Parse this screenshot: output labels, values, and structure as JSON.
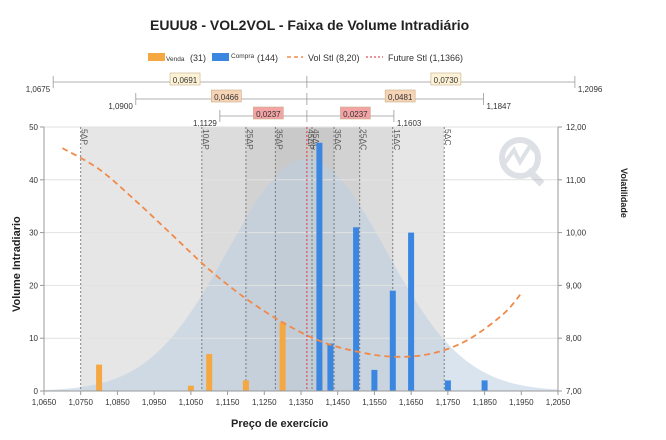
{
  "chart_data": {
    "type": "bar",
    "title": "EUUU8 - VOL2VOL - Faixa de Volume Intradiário",
    "xlabel": "Preço de exercício",
    "ylabel": "Volume Intradiario",
    "y2label": "Volatilidade",
    "xlim": [
      1.065,
      1.205
    ],
    "ylim": [
      0,
      50
    ],
    "y2lim": [
      7.0,
      12.0
    ],
    "x_ticks": [
      "1,0650",
      "1,0750",
      "1,0850",
      "1,0950",
      "1,1050",
      "1,1150",
      "1,1250",
      "1,1350",
      "1,1450",
      "1,1550",
      "1,1650",
      "1,1750",
      "1,1850",
      "1,1950",
      "1,2050"
    ],
    "y_ticks": [
      "0",
      "10",
      "20",
      "30",
      "40",
      "50"
    ],
    "y2_ticks": [
      "7,00",
      "8,00",
      "9,00",
      "10,00",
      "11,00",
      "12,00"
    ],
    "legend": {
      "venda": {
        "label": "Venda",
        "count": "(31)",
        "color": "#f5a742"
      },
      "compra": {
        "label": "Compra",
        "count": "(144)",
        "color": "#3b86e0"
      },
      "vol_stl": {
        "label": "Vol Stl (8,20)",
        "color": "#f08a4b"
      },
      "future_stl": {
        "label": "Future Stl (1,1366)",
        "color": "#e0505a"
      }
    },
    "series": [
      {
        "name": "Venda",
        "color": "#f5a742",
        "points": [
          [
            1.08,
            5
          ],
          [
            1.105,
            1
          ],
          [
            1.11,
            7
          ],
          [
            1.12,
            2
          ],
          [
            1.13,
            13
          ],
          [
            1.14,
            3
          ]
        ]
      },
      {
        "name": "Compra",
        "color": "#3b86e0",
        "points": [
          [
            1.14,
            47
          ],
          [
            1.143,
            9
          ],
          [
            1.15,
            31
          ],
          [
            1.155,
            4
          ],
          [
            1.16,
            19
          ],
          [
            1.165,
            30
          ],
          [
            1.175,
            2
          ],
          [
            1.185,
            2
          ]
        ]
      }
    ],
    "vol_curve": [
      [
        1.07,
        11.6
      ],
      [
        1.08,
        11.2
      ],
      [
        1.09,
        10.6
      ],
      [
        1.1,
        9.95
      ],
      [
        1.11,
        9.3
      ],
      [
        1.12,
        8.75
      ],
      [
        1.13,
        8.3
      ],
      [
        1.14,
        7.95
      ],
      [
        1.15,
        7.75
      ],
      [
        1.16,
        7.65
      ],
      [
        1.17,
        7.7
      ],
      [
        1.18,
        7.95
      ],
      [
        1.19,
        8.45
      ],
      [
        1.195,
        8.85
      ]
    ],
    "future_stl_x": 1.1366,
    "bell": {
      "mean": 1.1366,
      "sd": 0.0215,
      "peak": 44
    },
    "delta_lines": [
      {
        "label": "5ΔP",
        "x": 1.075
      },
      {
        "label": "10ΔP",
        "x": 1.108
      },
      {
        "label": "25ΔP",
        "x": 1.12
      },
      {
        "label": "35ΔP",
        "x": 1.128
      },
      {
        "label": "45ΔP",
        "x": 1.1366
      },
      {
        "label": "45ΔC",
        "x": 1.138
      },
      {
        "label": "35ΔC",
        "x": 1.144
      },
      {
        "label": "25ΔC",
        "x": 1.151
      },
      {
        "label": "15ΔC",
        "x": 1.16
      },
      {
        "label": "5ΔC",
        "x": 1.174
      }
    ],
    "ranges": [
      {
        "left_label": "1,0675",
        "right_label": "1,2096",
        "width_label": "0,0691",
        "width_label_right": "0,0730",
        "color": "#fdf2d6",
        "left": 1.0675,
        "right": 1.2096,
        "row": 0
      },
      {
        "left_label": "1,0900",
        "right_label": "1,1847",
        "width_label": "0,0466",
        "width_label_right": "0,0481",
        "color": "#f7d3b5",
        "left": 1.09,
        "right": 1.1847,
        "row": 1
      },
      {
        "left_label": "1,1129",
        "right_label": "1,1603",
        "width_label": "0,0237",
        "width_label_right": "0,0237",
        "color": "#f3a3a3",
        "left": 1.1129,
        "right": 1.1603,
        "row": 2
      }
    ]
  }
}
